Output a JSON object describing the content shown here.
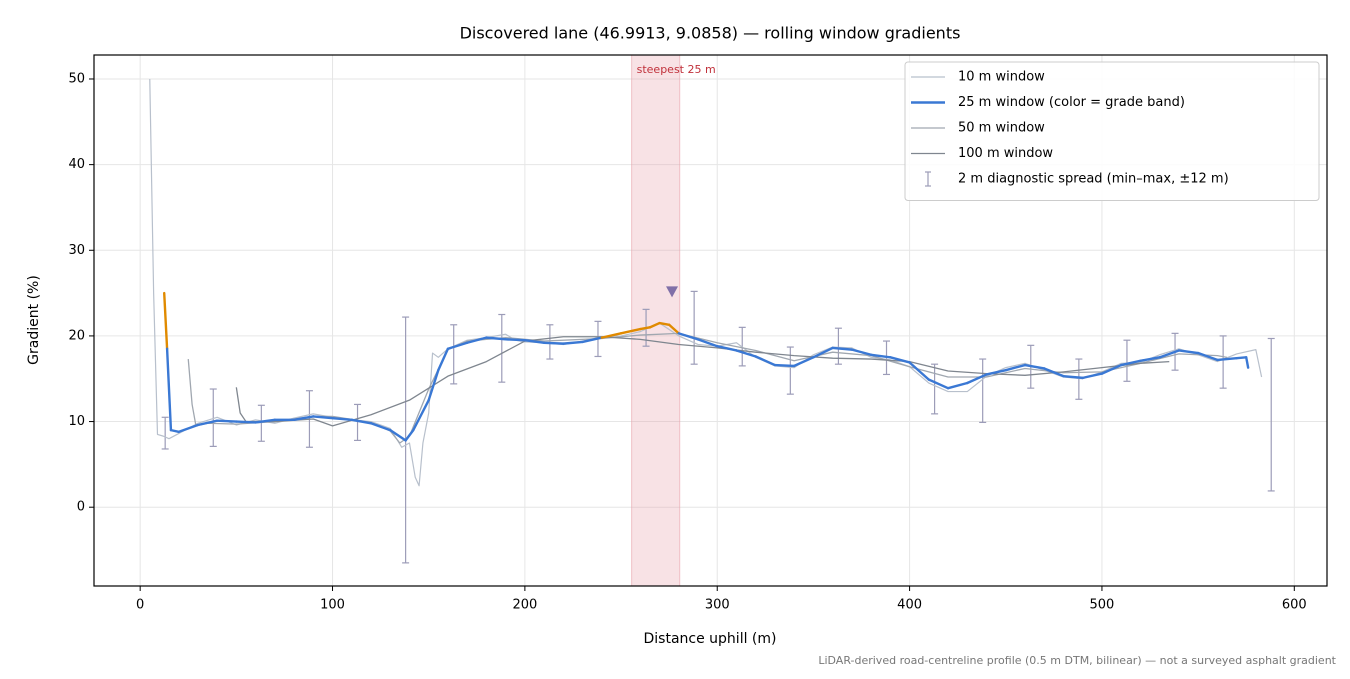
{
  "chart_data": {
    "type": "line",
    "title": "Discovered lane (46.9913, 9.0858) — rolling window gradients",
    "xlabel": "Distance uphill (m)",
    "ylabel": "Gradient (%)",
    "footnote": "LiDAR-derived road-centreline profile (0.5 m DTM, bilinear) — not a surveyed asphalt gradient",
    "xlim": [
      -24,
      617
    ],
    "ylim": [
      -9.2,
      52.8
    ],
    "xticks": [
      0,
      100,
      200,
      300,
      400,
      500,
      600
    ],
    "yticks": [
      0,
      10,
      20,
      30,
      40,
      50
    ],
    "grid": true,
    "legend": "upper right",
    "highlight": {
      "x0": 255.5,
      "x1": 280.5,
      "label": "steepest 25 m",
      "color": "#e8a0a8"
    },
    "peak_marker": {
      "x": 276.5,
      "y": 25.2,
      "color": "#8070a8"
    },
    "series": [
      {
        "name": "10 m window",
        "color": "#b8c0cc",
        "width": 1.2,
        "x": [
          5,
          7,
          9,
          12,
          15,
          20,
          30,
          40,
          50,
          60,
          70,
          80,
          90,
          100,
          110,
          120,
          130,
          136,
          140,
          143,
          145,
          147,
          150,
          152,
          155,
          160,
          170,
          180,
          190,
          195,
          200,
          210,
          220,
          230,
          240,
          250,
          260,
          270,
          280,
          290,
          300,
          310,
          320,
          330,
          340,
          350,
          360,
          370,
          380,
          390,
          400,
          410,
          420,
          430,
          440,
          450,
          460,
          470,
          480,
          490,
          500,
          510,
          520,
          530,
          540,
          550,
          560,
          570,
          580,
          583
        ],
        "values": [
          50,
          25,
          8.5,
          8.3,
          8.0,
          8.6,
          9.8,
          10.5,
          9.6,
          10.2,
          9.8,
          10.4,
          10.9,
          10.5,
          10.2,
          10.0,
          9.2,
          7.0,
          7.5,
          3.5,
          2.5,
          7.5,
          11,
          18,
          17.5,
          18.5,
          19.5,
          19.8,
          20.2,
          19.5,
          19.3,
          19.2,
          19.0,
          19.4,
          19.9,
          20.0,
          20.5,
          21.5,
          20.0,
          19.0,
          18.8,
          19.2,
          17.5,
          16.5,
          16.3,
          17.8,
          18.7,
          18.6,
          17.5,
          17.2,
          16.4,
          14.5,
          13.5,
          13.5,
          15.3,
          16.3,
          16.8,
          16.0,
          15.2,
          15.0,
          15.8,
          16.8,
          16.9,
          17.8,
          18.5,
          17.8,
          17.0,
          17.9,
          18.4,
          15.2
        ]
      },
      {
        "name": "25 m window (color = grade band)",
        "color": "#3a78d4",
        "band_color": "#e08a00",
        "band_threshold": 20,
        "width": 2.4,
        "x": [
          12.5,
          14,
          16,
          20,
          30,
          40,
          50,
          60,
          70,
          80,
          90,
          100,
          110,
          120,
          130,
          138,
          142,
          150,
          155,
          160,
          170,
          180,
          190,
          200,
          210,
          220,
          230,
          240,
          250,
          260,
          265,
          270,
          275,
          280,
          290,
          300,
          310,
          320,
          330,
          340,
          350,
          360,
          370,
          380,
          390,
          400,
          410,
          420,
          430,
          440,
          450,
          460,
          470,
          480,
          490,
          500,
          510,
          520,
          530,
          540,
          550,
          560,
          570,
          575,
          576
        ],
        "values": [
          25,
          18.5,
          9,
          8.8,
          9.6,
          10.1,
          10.0,
          9.9,
          10.2,
          10.2,
          10.6,
          10.4,
          10.2,
          9.8,
          9.0,
          7.8,
          9.0,
          12.5,
          16,
          18.5,
          19.2,
          19.8,
          19.6,
          19.5,
          19.2,
          19.1,
          19.3,
          19.8,
          20.3,
          20.8,
          21.0,
          21.5,
          21.3,
          20.3,
          19.6,
          18.8,
          18.3,
          17.6,
          16.6,
          16.5,
          17.5,
          18.6,
          18.4,
          17.8,
          17.5,
          16.9,
          14.9,
          13.9,
          14.5,
          15.5,
          16.0,
          16.6,
          16.2,
          15.3,
          15.1,
          15.6,
          16.6,
          17.1,
          17.5,
          18.3,
          18.0,
          17.2,
          17.4,
          17.5,
          16.3
        ]
      },
      {
        "name": "50 m window",
        "color": "#a0a7b0",
        "width": 1.3,
        "x": [
          25,
          27,
          29,
          35,
          50,
          70,
          90,
          100,
          120,
          130,
          135,
          140,
          150,
          160,
          170,
          190,
          210,
          240,
          260,
          280,
          300,
          320,
          340,
          360,
          380,
          400,
          420,
          440,
          460,
          480,
          500,
          520,
          540,
          560,
          565
        ],
        "values": [
          17.3,
          12,
          9.5,
          9.8,
          9.7,
          10.0,
          10.6,
          10.6,
          9.9,
          8.9,
          7.5,
          8.3,
          13.8,
          18.4,
          19.4,
          19.8,
          19.4,
          19.7,
          20.1,
          20.3,
          19.2,
          18.3,
          17.1,
          18.1,
          17.7,
          16.4,
          15.2,
          15.2,
          16.2,
          15.7,
          15.8,
          16.8,
          17.9,
          17.7,
          17.5
        ]
      },
      {
        "name": "100 m window",
        "color": "#7f868f",
        "width": 1.3,
        "x": [
          50,
          52,
          55,
          70,
          90,
          100,
          120,
          140,
          160,
          180,
          200,
          220,
          240,
          260,
          280,
          300,
          320,
          340,
          360,
          380,
          400,
          420,
          440,
          460,
          480,
          500,
          520,
          535
        ],
        "values": [
          14.0,
          11.0,
          10.0,
          10.0,
          10.3,
          9.5,
          10.8,
          12.5,
          15.3,
          17.0,
          19.4,
          19.9,
          19.9,
          19.6,
          19.0,
          18.6,
          18.1,
          17.7,
          17.4,
          17.3,
          17.0,
          15.9,
          15.6,
          15.4,
          15.8,
          16.3,
          16.8,
          17.0
        ]
      }
    ],
    "errorbars": {
      "name": "2 m diagnostic spread (min–max, ±12 m)",
      "color": "#9c9cb8",
      "x": [
        13,
        38,
        63,
        88,
        113,
        138,
        163,
        188,
        213,
        238,
        263,
        288,
        313,
        338,
        363,
        388,
        413,
        438,
        463,
        488,
        513,
        538,
        563,
        588
      ],
      "min": [
        6.8,
        7.1,
        7.7,
        7.0,
        7.8,
        -6.5,
        14.4,
        14.6,
        17.3,
        17.6,
        18.8,
        16.7,
        16.5,
        13.2,
        16.7,
        15.5,
        10.9,
        9.9,
        13.9,
        12.6,
        14.7,
        16.0,
        13.9,
        1.9
      ],
      "max": [
        10.5,
        13.8,
        11.9,
        13.6,
        12.0,
        22.2,
        21.3,
        22.5,
        21.3,
        21.7,
        23.1,
        25.2,
        21.0,
        18.7,
        20.9,
        19.4,
        16.7,
        17.3,
        18.9,
        17.3,
        19.5,
        20.3,
        20.0,
        19.7
      ]
    }
  }
}
